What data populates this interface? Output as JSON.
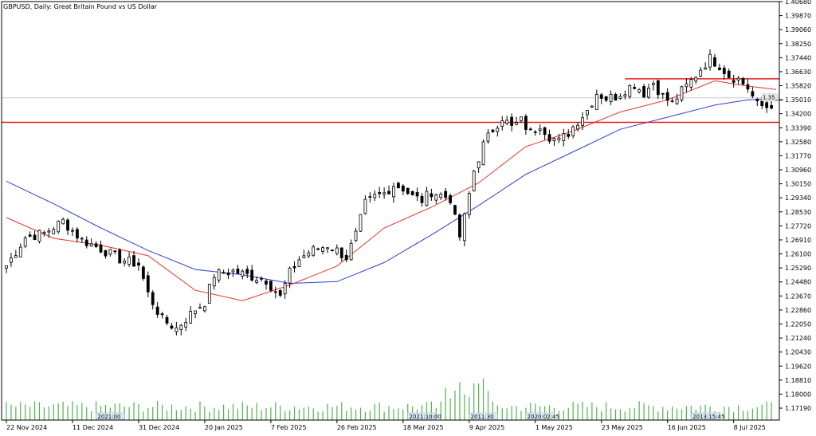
{
  "header": {
    "title": "GBPUSD, Daily:  Great Britain Pound vs US Dollar"
  },
  "price_tag": "1.35___",
  "colors": {
    "background": "#ffffff",
    "candle_up": "#000000",
    "candle_down": "#000000",
    "ma_fast": "#e8342c",
    "ma_slow": "#2f3ed6",
    "volume": "#4fb34f",
    "zone": "#e0201c",
    "grid": "#c8c8c8",
    "axis": "#000000"
  },
  "chart_data": {
    "type": "candlestick",
    "symbol": "GBPUSD",
    "timeframe": "Daily",
    "ylim": [
      1.165,
      1.4068
    ],
    "y_ticks": [
      "1.40680",
      "1.39870",
      "1.39060",
      "1.38250",
      "1.37440",
      "1.36630",
      "1.35820",
      "1.35010",
      "1.34200",
      "1.33390",
      "1.32580",
      "1.31770",
      "1.30960",
      "1.30150",
      "1.29340",
      "1.28530",
      "1.27720",
      "1.26910",
      "1.26100",
      "1.25290",
      "1.24480",
      "1.23670",
      "1.22860",
      "1.22050",
      "1.21240",
      "1.20430",
      "1.19620",
      "1.18810",
      "1.18000",
      "1.17190"
    ],
    "x_labels": [
      "22 Nov 2024",
      "11 Dec 2024",
      "31 Dec 2024",
      "20 Jan 2025",
      "7 Feb 2025",
      "26 Feb 2025",
      "18 Mar 2025",
      "9 Apr 2025",
      "1 May 2025",
      "23 May 2025",
      "16 Jun 2025",
      "8 Jul 2025"
    ],
    "x_label_index": [
      0,
      14,
      28,
      42,
      56,
      70,
      84,
      98,
      112,
      126,
      140,
      154
    ],
    "num_bars": 163,
    "anchors": [
      [
        0,
        1.2542
      ],
      [
        4,
        1.2705
      ],
      [
        8,
        1.273
      ],
      [
        12,
        1.28
      ],
      [
        16,
        1.269
      ],
      [
        20,
        1.264
      ],
      [
        24,
        1.258
      ],
      [
        28,
        1.255
      ],
      [
        30,
        1.238
      ],
      [
        33,
        1.223
      ],
      [
        36,
        1.218
      ],
      [
        40,
        1.229
      ],
      [
        42,
        1.233
      ],
      [
        44,
        1.249
      ],
      [
        48,
        1.251
      ],
      [
        52,
        1.248
      ],
      [
        55,
        1.246
      ],
      [
        58,
        1.236
      ],
      [
        60,
        1.25
      ],
      [
        62,
        1.258
      ],
      [
        64,
        1.262
      ],
      [
        66,
        1.264
      ],
      [
        68,
        1.266
      ],
      [
        70,
        1.263
      ],
      [
        72,
        1.259
      ],
      [
        74,
        1.272
      ],
      [
        76,
        1.29
      ],
      [
        78,
        1.294
      ],
      [
        80,
        1.296
      ],
      [
        82,
        1.301
      ],
      [
        84,
        1.299
      ],
      [
        86,
        1.294
      ],
      [
        88,
        1.292
      ],
      [
        90,
        1.297
      ],
      [
        92,
        1.295
      ],
      [
        94,
        1.293
      ],
      [
        95,
        1.281
      ],
      [
        96,
        1.271
      ],
      [
        97,
        1.282
      ],
      [
        99,
        1.309
      ],
      [
        101,
        1.324
      ],
      [
        103,
        1.333
      ],
      [
        105,
        1.34
      ],
      [
        107,
        1.334
      ],
      [
        109,
        1.338
      ],
      [
        111,
        1.331
      ],
      [
        113,
        1.336
      ],
      [
        115,
        1.329
      ],
      [
        117,
        1.326
      ],
      [
        119,
        1.331
      ],
      [
        121,
        1.338
      ],
      [
        123,
        1.344
      ],
      [
        125,
        1.354
      ],
      [
        127,
        1.351
      ],
      [
        129,
        1.352
      ],
      [
        131,
        1.356
      ],
      [
        133,
        1.359
      ],
      [
        135,
        1.354
      ],
      [
        137,
        1.36
      ],
      [
        139,
        1.352
      ],
      [
        141,
        1.348
      ],
      [
        143,
        1.355
      ],
      [
        145,
        1.361
      ],
      [
        147,
        1.368
      ],
      [
        149,
        1.374
      ],
      [
        151,
        1.37
      ],
      [
        153,
        1.364
      ],
      [
        155,
        1.362
      ],
      [
        157,
        1.357
      ],
      [
        159,
        1.347
      ],
      [
        161,
        1.346
      ],
      [
        163,
        1.349
      ],
      [
        165,
        1.352
      ]
    ],
    "ma_fast": [
      [
        0,
        1.282
      ],
      [
        10,
        1.27
      ],
      [
        20,
        1.266
      ],
      [
        30,
        1.26
      ],
      [
        40,
        1.24
      ],
      [
        50,
        1.234
      ],
      [
        60,
        1.243
      ],
      [
        70,
        1.254
      ],
      [
        80,
        1.276
      ],
      [
        90,
        1.288
      ],
      [
        100,
        1.302
      ],
      [
        110,
        1.323
      ],
      [
        120,
        1.332
      ],
      [
        130,
        1.343
      ],
      [
        140,
        1.35
      ],
      [
        150,
        1.361
      ],
      [
        157,
        1.358
      ],
      [
        163,
        1.356
      ]
    ],
    "ma_slow": [
      [
        0,
        1.303
      ],
      [
        10,
        1.29
      ],
      [
        20,
        1.276
      ],
      [
        30,
        1.263
      ],
      [
        40,
        1.252
      ],
      [
        50,
        1.249
      ],
      [
        60,
        1.244
      ],
      [
        70,
        1.245
      ],
      [
        80,
        1.256
      ],
      [
        90,
        1.272
      ],
      [
        100,
        1.289
      ],
      [
        110,
        1.307
      ],
      [
        120,
        1.32
      ],
      [
        130,
        1.333
      ],
      [
        140,
        1.34
      ],
      [
        150,
        1.347
      ],
      [
        157,
        1.35
      ],
      [
        163,
        1.351
      ]
    ],
    "zone": {
      "top": 1.3622,
      "bottom": 1.337,
      "from_index": 131
    },
    "horizontal_line": 1.3512,
    "time_tags": [
      "2021:00",
      "2021:10:00",
      "2011:30",
      "2020:02:45",
      "2013:15:45"
    ],
    "time_tag_index": [
      22,
      88,
      101,
      113,
      148
    ]
  }
}
